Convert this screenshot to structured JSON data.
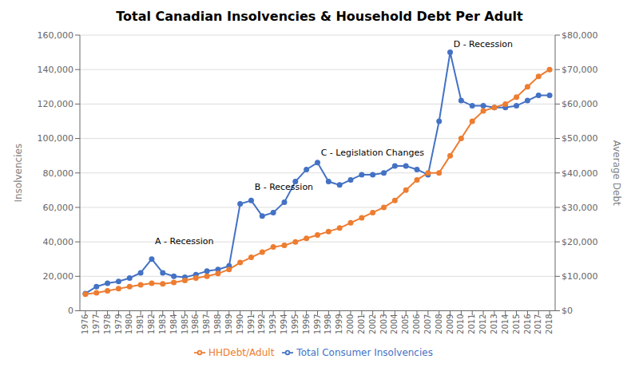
{
  "chart_data": {
    "type": "line",
    "title": "Total Canadian Insolvencies & Household Debt Per Adult",
    "x": [
      1976,
      1977,
      1978,
      1979,
      1980,
      1981,
      1982,
      1983,
      1984,
      1985,
      1986,
      1987,
      1988,
      1989,
      1990,
      1991,
      1992,
      1993,
      1994,
      1995,
      1996,
      1997,
      1998,
      1999,
      2000,
      2001,
      2002,
      2003,
      2004,
      2005,
      2006,
      2007,
      2008,
      2009,
      2010,
      2011,
      2012,
      2013,
      2014,
      2015,
      2016,
      2017,
      2018
    ],
    "xlim": [
      1975.5,
      2018.5
    ],
    "xticks": [
      1976,
      1977,
      1978,
      1979,
      1980,
      1981,
      1982,
      1983,
      1984,
      1985,
      1986,
      1987,
      1988,
      1989,
      1990,
      1991,
      1992,
      1993,
      1994,
      1995,
      1996,
      1997,
      1998,
      1999,
      2000,
      2001,
      2002,
      2003,
      2004,
      2005,
      2006,
      2007,
      2008,
      2009,
      2010,
      2011,
      2012,
      2013,
      2014,
      2015,
      2016,
      2017,
      2018
    ],
    "ylabel": "Insolvencies",
    "y2label": "Average Debt",
    "ylim": [
      0,
      160000
    ],
    "yticks": [
      0,
      {
        "value": 20000,
        "label": "20,000"
      },
      {
        "value": 40000,
        "label": "40,000"
      },
      {
        "value": 60000,
        "label": "60,000"
      },
      {
        "value": 80000,
        "label": "80,000"
      },
      {
        "value": 100000,
        "label": "100,000"
      },
      {
        "value": 120000,
        "label": "120,000"
      },
      {
        "value": 140000,
        "label": "140,000"
      },
      {
        "value": 160000,
        "label": "160,000"
      }
    ],
    "y2lim": [
      0,
      80000
    ],
    "y2ticks": [
      {
        "value": 0,
        "label": "$0"
      },
      {
        "value": 10000,
        "label": "$10,000"
      },
      {
        "value": 20000,
        "label": "$20,000"
      },
      {
        "value": 30000,
        "label": "$30,000"
      },
      {
        "value": 40000,
        "label": "$40,000"
      },
      {
        "value": 50000,
        "label": "$50,000"
      },
      {
        "value": 60000,
        "label": "$60,000"
      },
      {
        "value": 70000,
        "label": "$70,000"
      },
      {
        "value": 80000,
        "label": "$80,000"
      }
    ],
    "series": [
      {
        "name": "Total Consumer Insolvencies",
        "color": "#4472C4",
        "marker": "circle",
        "values": [
          10000,
          14000,
          16000,
          17000,
          19000,
          22000,
          30000,
          22000,
          20000,
          19500,
          21000,
          23000,
          24000,
          26000,
          62000,
          64000,
          55000,
          57000,
          63000,
          75000,
          82000,
          86000,
          75000,
          73000,
          76000,
          79000,
          79000,
          80000,
          84000,
          84000,
          82000,
          79000,
          110000,
          150000,
          122000,
          119000,
          119000,
          118000,
          118000,
          119000,
          122000,
          125000,
          125000
        ]
      },
      {
        "name": "HHDebt/Adult",
        "color": "#ED7D31",
        "marker": "circle",
        "axis": "y2",
        "values": [
          4800,
          5200,
          5800,
          6400,
          7000,
          7500,
          8000,
          7800,
          8200,
          8800,
          9500,
          10000,
          10800,
          12000,
          14000,
          15500,
          17000,
          18500,
          19000,
          20000,
          21000,
          22000,
          23000,
          24000,
          25500,
          27000,
          28500,
          30000,
          32000,
          35000,
          38000,
          40000,
          40000,
          45000,
          50000,
          55000,
          58000,
          59000,
          60000,
          62000,
          65000,
          68000,
          70000
        ]
      }
    ],
    "annotations": [
      {
        "label": "A - Recession",
        "x": 1982.3,
        "y": 40500
      },
      {
        "label": "B - Recession",
        "x": 1991.3,
        "y": 72000
      },
      {
        "label": "C - Legislation Changes",
        "x": 1997.3,
        "y": 92000
      },
      {
        "label": "D - Recession",
        "x": 2009.3,
        "y": 155000
      }
    ],
    "grid": true,
    "legend": "bottom"
  }
}
